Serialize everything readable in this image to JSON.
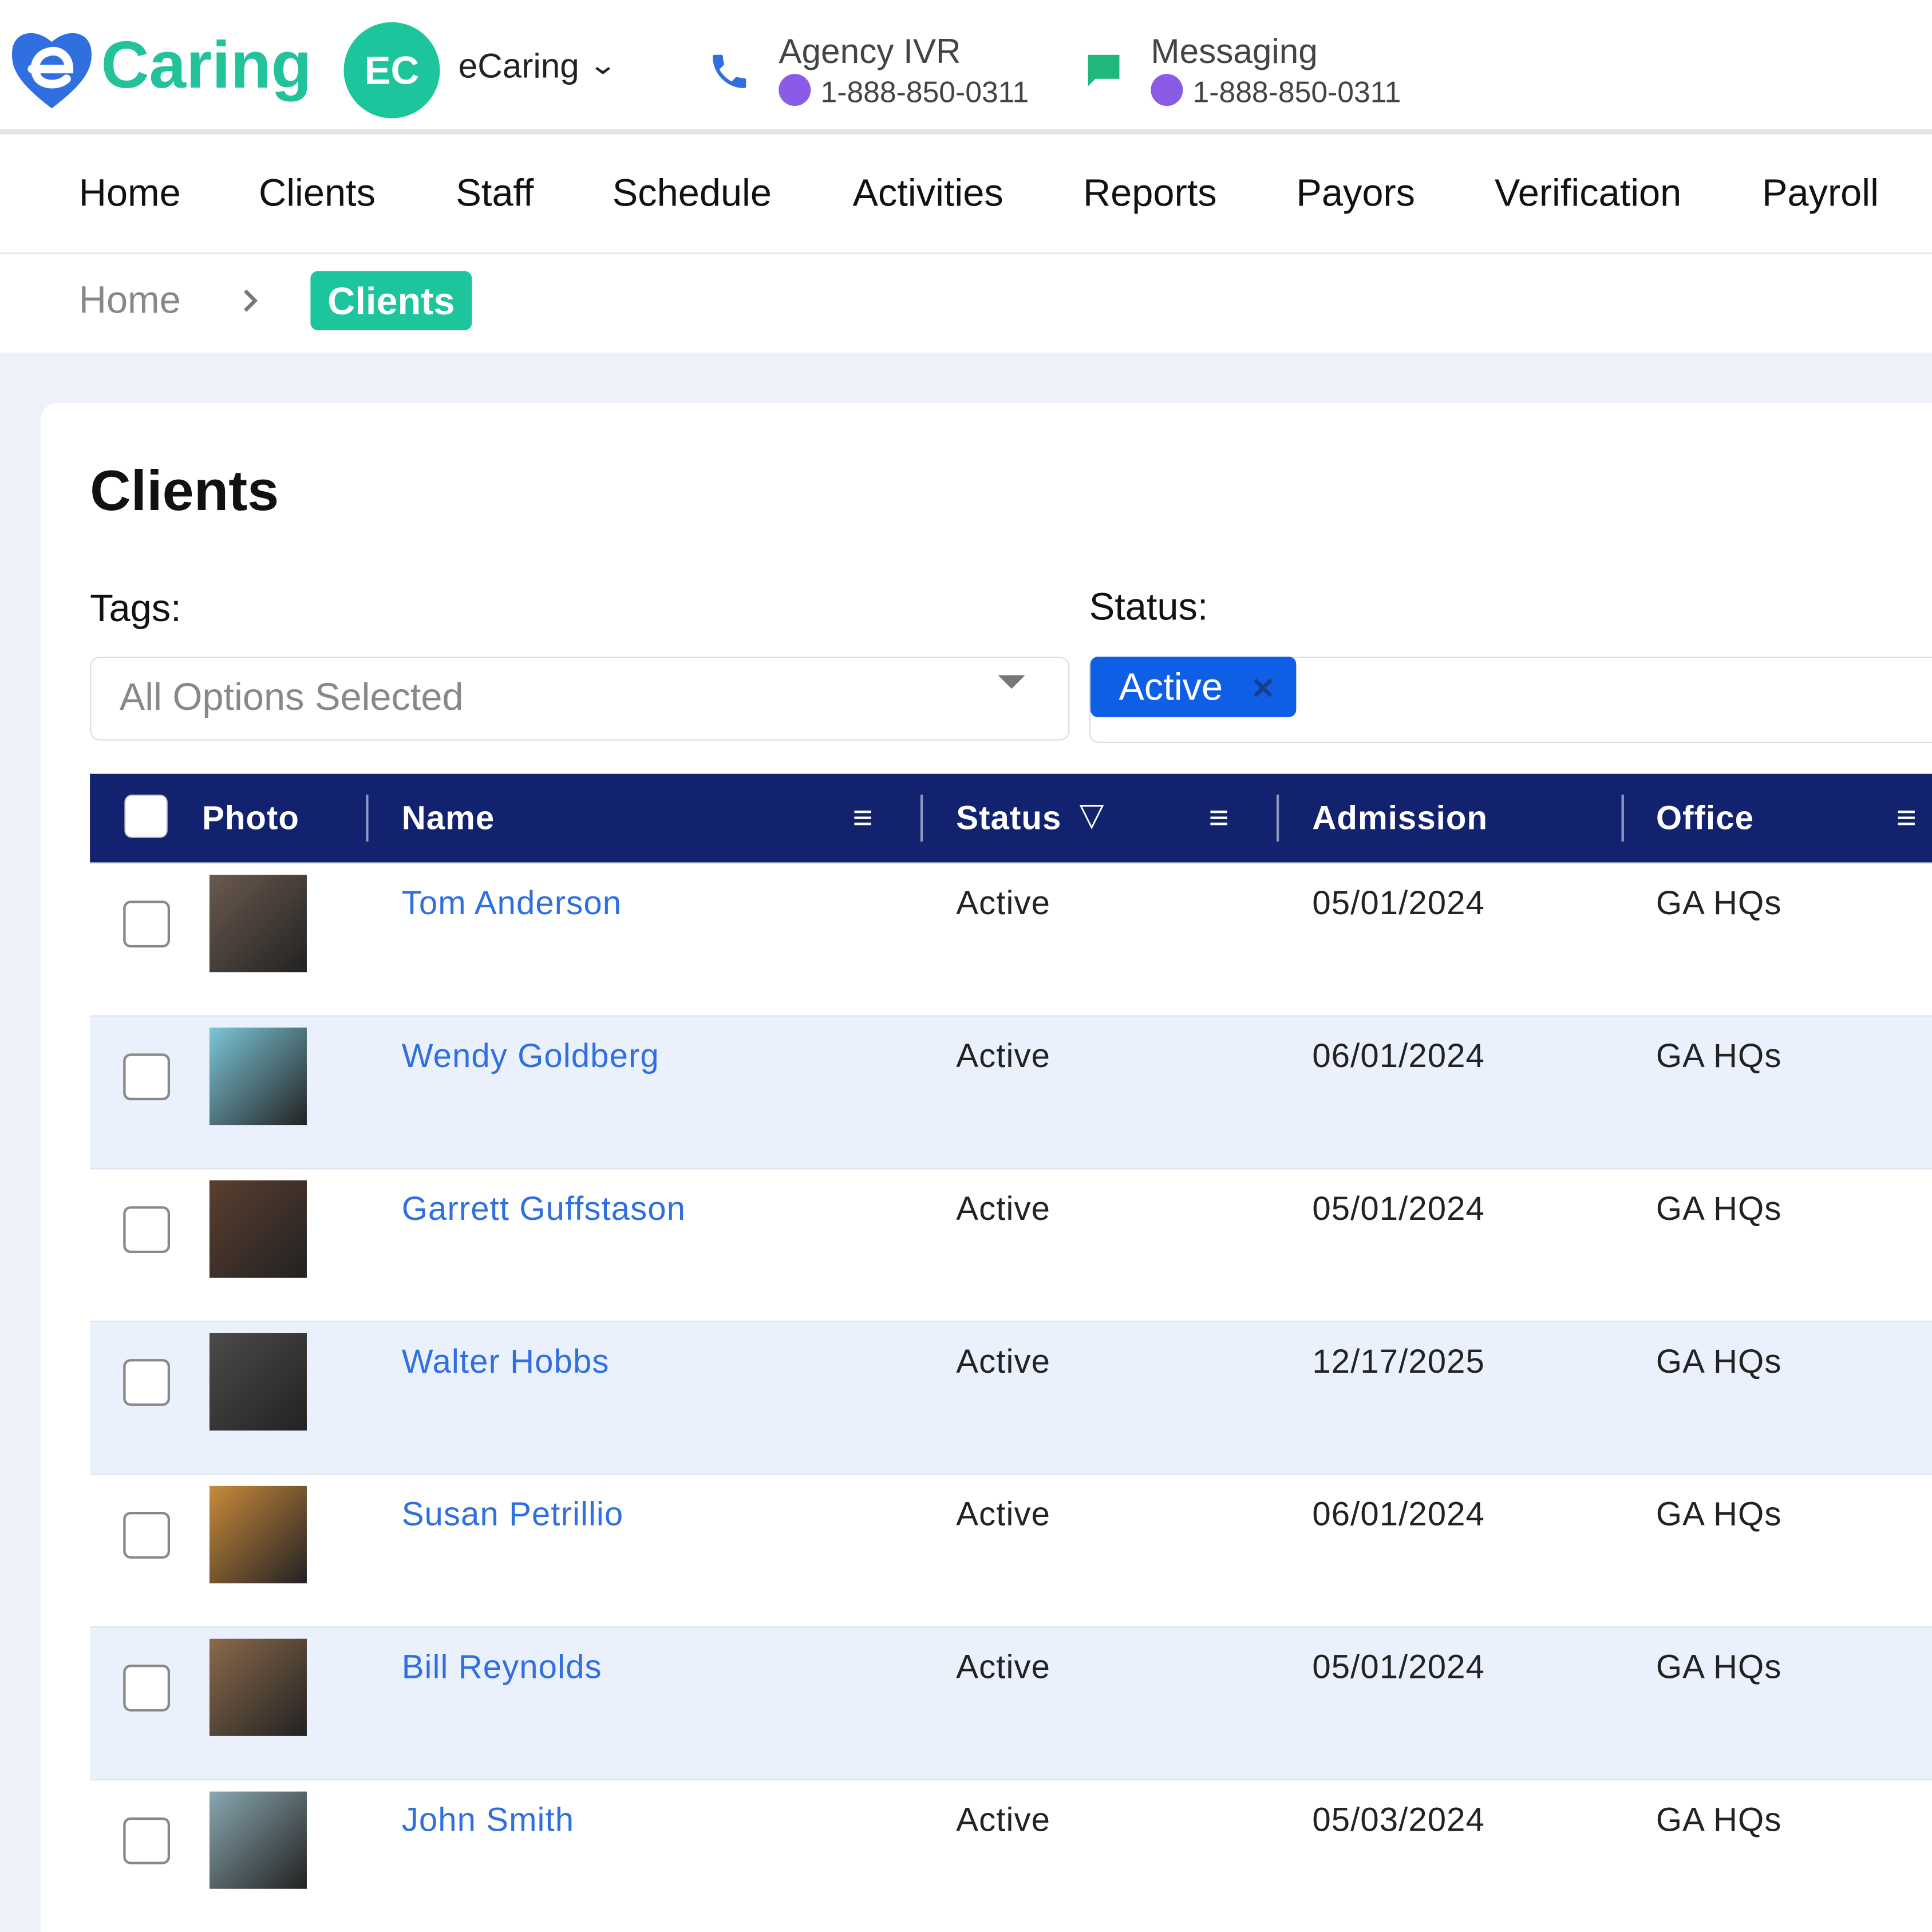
{
  "header": {
    "logo": "Caring",
    "avatar": "EC",
    "account": "eCaring",
    "contacts": [
      {
        "label": "Agency IVR",
        "phone": "1-888-850-0311"
      },
      {
        "label": "Messaging",
        "phone": "1-888-850-0311"
      }
    ]
  },
  "nav": [
    "Home",
    "Clients",
    "Staff",
    "Schedule",
    "Activities",
    "Reports",
    "Payors",
    "Verification",
    "Payroll"
  ],
  "breadcrumb": [
    "Home",
    "Clients"
  ],
  "page": {
    "title": "Clients",
    "tags_label": "Tags:",
    "tags_placeholder": "All Options Selected",
    "status_label": "Status:",
    "status_chip": "Active"
  },
  "table": {
    "columns": [
      "Photo",
      "Name",
      "Status",
      "Admission",
      "Office"
    ],
    "rows": [
      [
        "Tom Anderson",
        "Active",
        "05/01/2024",
        "GA HQs"
      ],
      [
        "Wendy Goldberg",
        "Active",
        "06/01/2024",
        "GA HQs"
      ],
      [
        "Garrett Guffstason",
        "Active",
        "05/01/2024",
        "GA HQs"
      ],
      [
        "Walter Hobbs",
        "Active",
        "12/17/2025",
        "GA HQs"
      ],
      [
        "Susan Petrillio",
        "Active",
        "06/01/2024",
        "GA HQs"
      ],
      [
        "Bill Reynolds",
        "Active",
        "05/01/2024",
        "GA HQs"
      ],
      [
        "John Smith",
        "Active",
        "05/03/2024",
        "GA HQs"
      ]
    ]
  }
}
